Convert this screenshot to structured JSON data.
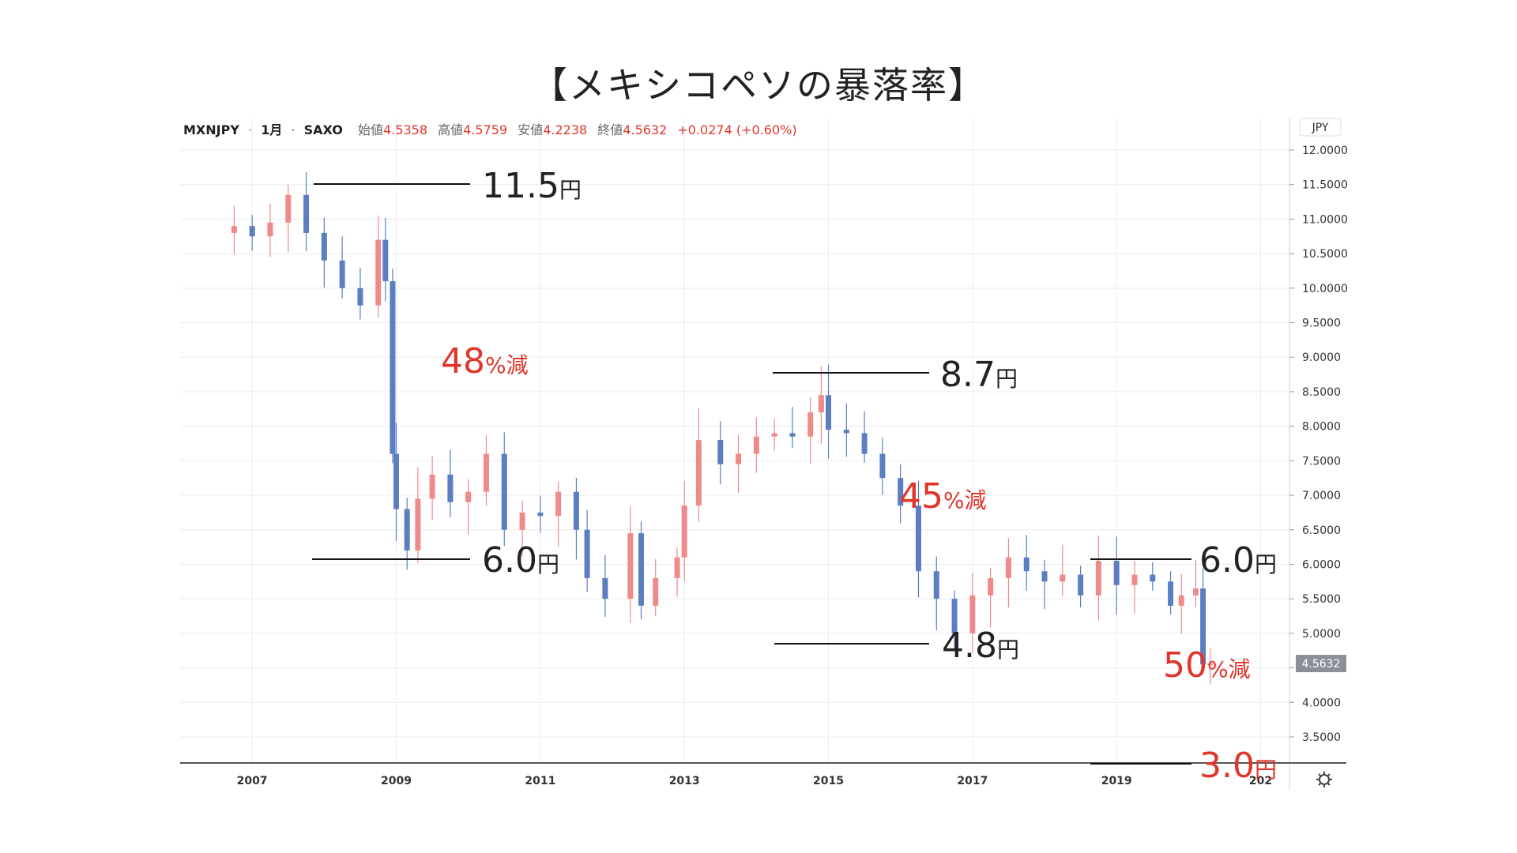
{
  "title": "【メキシコペソの暴落率】",
  "header": {
    "symbol": "MXNJPY",
    "interval": "1月",
    "source": "SAXO",
    "open_label": "始値",
    "open": "4.5358",
    "high_label": "高値",
    "high": "4.5759",
    "low_label": "安値",
    "low": "4.2238",
    "close_label": "終値",
    "close": "4.5632",
    "change": "+0.0274 (+0.60%)"
  },
  "colors": {
    "up": "#ef8a8a",
    "down": "#5a7ec0",
    "accent": "#e0352b",
    "grid": "#ececec"
  },
  "currency_label": "JPY",
  "last_price": "4.5632",
  "settings_icon": "gear-icon",
  "chart_data": {
    "type": "candlestick",
    "x_tick_labels": [
      "2007",
      "2009",
      "2011",
      "2013",
      "2015",
      "2017",
      "2019",
      "202"
    ],
    "y_tick_labels": [
      "3.5000",
      "4.0000",
      "4.5000",
      "5.0000",
      "5.5000",
      "6.0000",
      "6.5000",
      "7.0000",
      "7.5000",
      "8.0000",
      "8.5000",
      "9.0000",
      "9.5000",
      "10.0000",
      "10.5000",
      "11.0000",
      "11.5000",
      "12.0000"
    ],
    "ylim": [
      3.2,
      12.3
    ],
    "xlim": [
      2006.0,
      2021.4
    ],
    "series_close": [
      [
        2006.75,
        10.9
      ],
      [
        2007.0,
        10.75
      ],
      [
        2007.25,
        10.95
      ],
      [
        2007.5,
        11.35
      ],
      [
        2007.75,
        10.8
      ],
      [
        2008.0,
        10.4
      ],
      [
        2008.25,
        10.0
      ],
      [
        2008.5,
        9.75
      ],
      [
        2008.75,
        10.7
      ],
      [
        2008.85,
        10.1
      ],
      [
        2008.95,
        7.6
      ],
      [
        2009.0,
        6.8
      ],
      [
        2009.15,
        6.2
      ],
      [
        2009.3,
        6.95
      ],
      [
        2009.5,
        7.3
      ],
      [
        2009.75,
        6.9
      ],
      [
        2010.0,
        7.05
      ],
      [
        2010.25,
        7.6
      ],
      [
        2010.5,
        6.5
      ],
      [
        2010.75,
        6.75
      ],
      [
        2011.0,
        6.7
      ],
      [
        2011.25,
        7.05
      ],
      [
        2011.5,
        6.5
      ],
      [
        2011.65,
        5.8
      ],
      [
        2011.9,
        5.5
      ],
      [
        2012.25,
        6.45
      ],
      [
        2012.4,
        5.4
      ],
      [
        2012.6,
        5.8
      ],
      [
        2012.9,
        6.1
      ],
      [
        2013.0,
        6.85
      ],
      [
        2013.2,
        7.8
      ],
      [
        2013.5,
        7.45
      ],
      [
        2013.75,
        7.6
      ],
      [
        2014.0,
        7.85
      ],
      [
        2014.25,
        7.9
      ],
      [
        2014.5,
        7.85
      ],
      [
        2014.75,
        8.2
      ],
      [
        2014.9,
        8.45
      ],
      [
        2015.0,
        7.95
      ],
      [
        2015.25,
        7.9
      ],
      [
        2015.5,
        7.6
      ],
      [
        2015.75,
        7.25
      ],
      [
        2016.0,
        6.85
      ],
      [
        2016.25,
        5.9
      ],
      [
        2016.5,
        5.5
      ],
      [
        2016.75,
        5.0
      ],
      [
        2017.0,
        5.55
      ],
      [
        2017.25,
        5.8
      ],
      [
        2017.5,
        6.1
      ],
      [
        2017.75,
        5.9
      ],
      [
        2018.0,
        5.75
      ],
      [
        2018.25,
        5.85
      ],
      [
        2018.5,
        5.55
      ],
      [
        2018.75,
        6.05
      ],
      [
        2019.0,
        5.7
      ],
      [
        2019.25,
        5.85
      ],
      [
        2019.5,
        5.75
      ],
      [
        2019.75,
        5.4
      ],
      [
        2019.9,
        5.55
      ],
      [
        2020.1,
        5.65
      ],
      [
        2020.2,
        4.55
      ],
      [
        2020.3,
        4.5632
      ]
    ],
    "annotations": {
      "levels": [
        {
          "value": "11.5",
          "unit": "円"
        },
        {
          "value": "6.0",
          "unit": "円"
        },
        {
          "value": "8.7",
          "unit": "円"
        },
        {
          "value": "4.8",
          "unit": "円"
        },
        {
          "value": "6.0",
          "unit": "円"
        },
        {
          "value": "3.0",
          "unit": "円"
        }
      ],
      "drops": [
        {
          "value": "48",
          "unit": "%減"
        },
        {
          "value": "45",
          "unit": "%減"
        },
        {
          "value": "50",
          "unit": "%減"
        }
      ]
    }
  }
}
